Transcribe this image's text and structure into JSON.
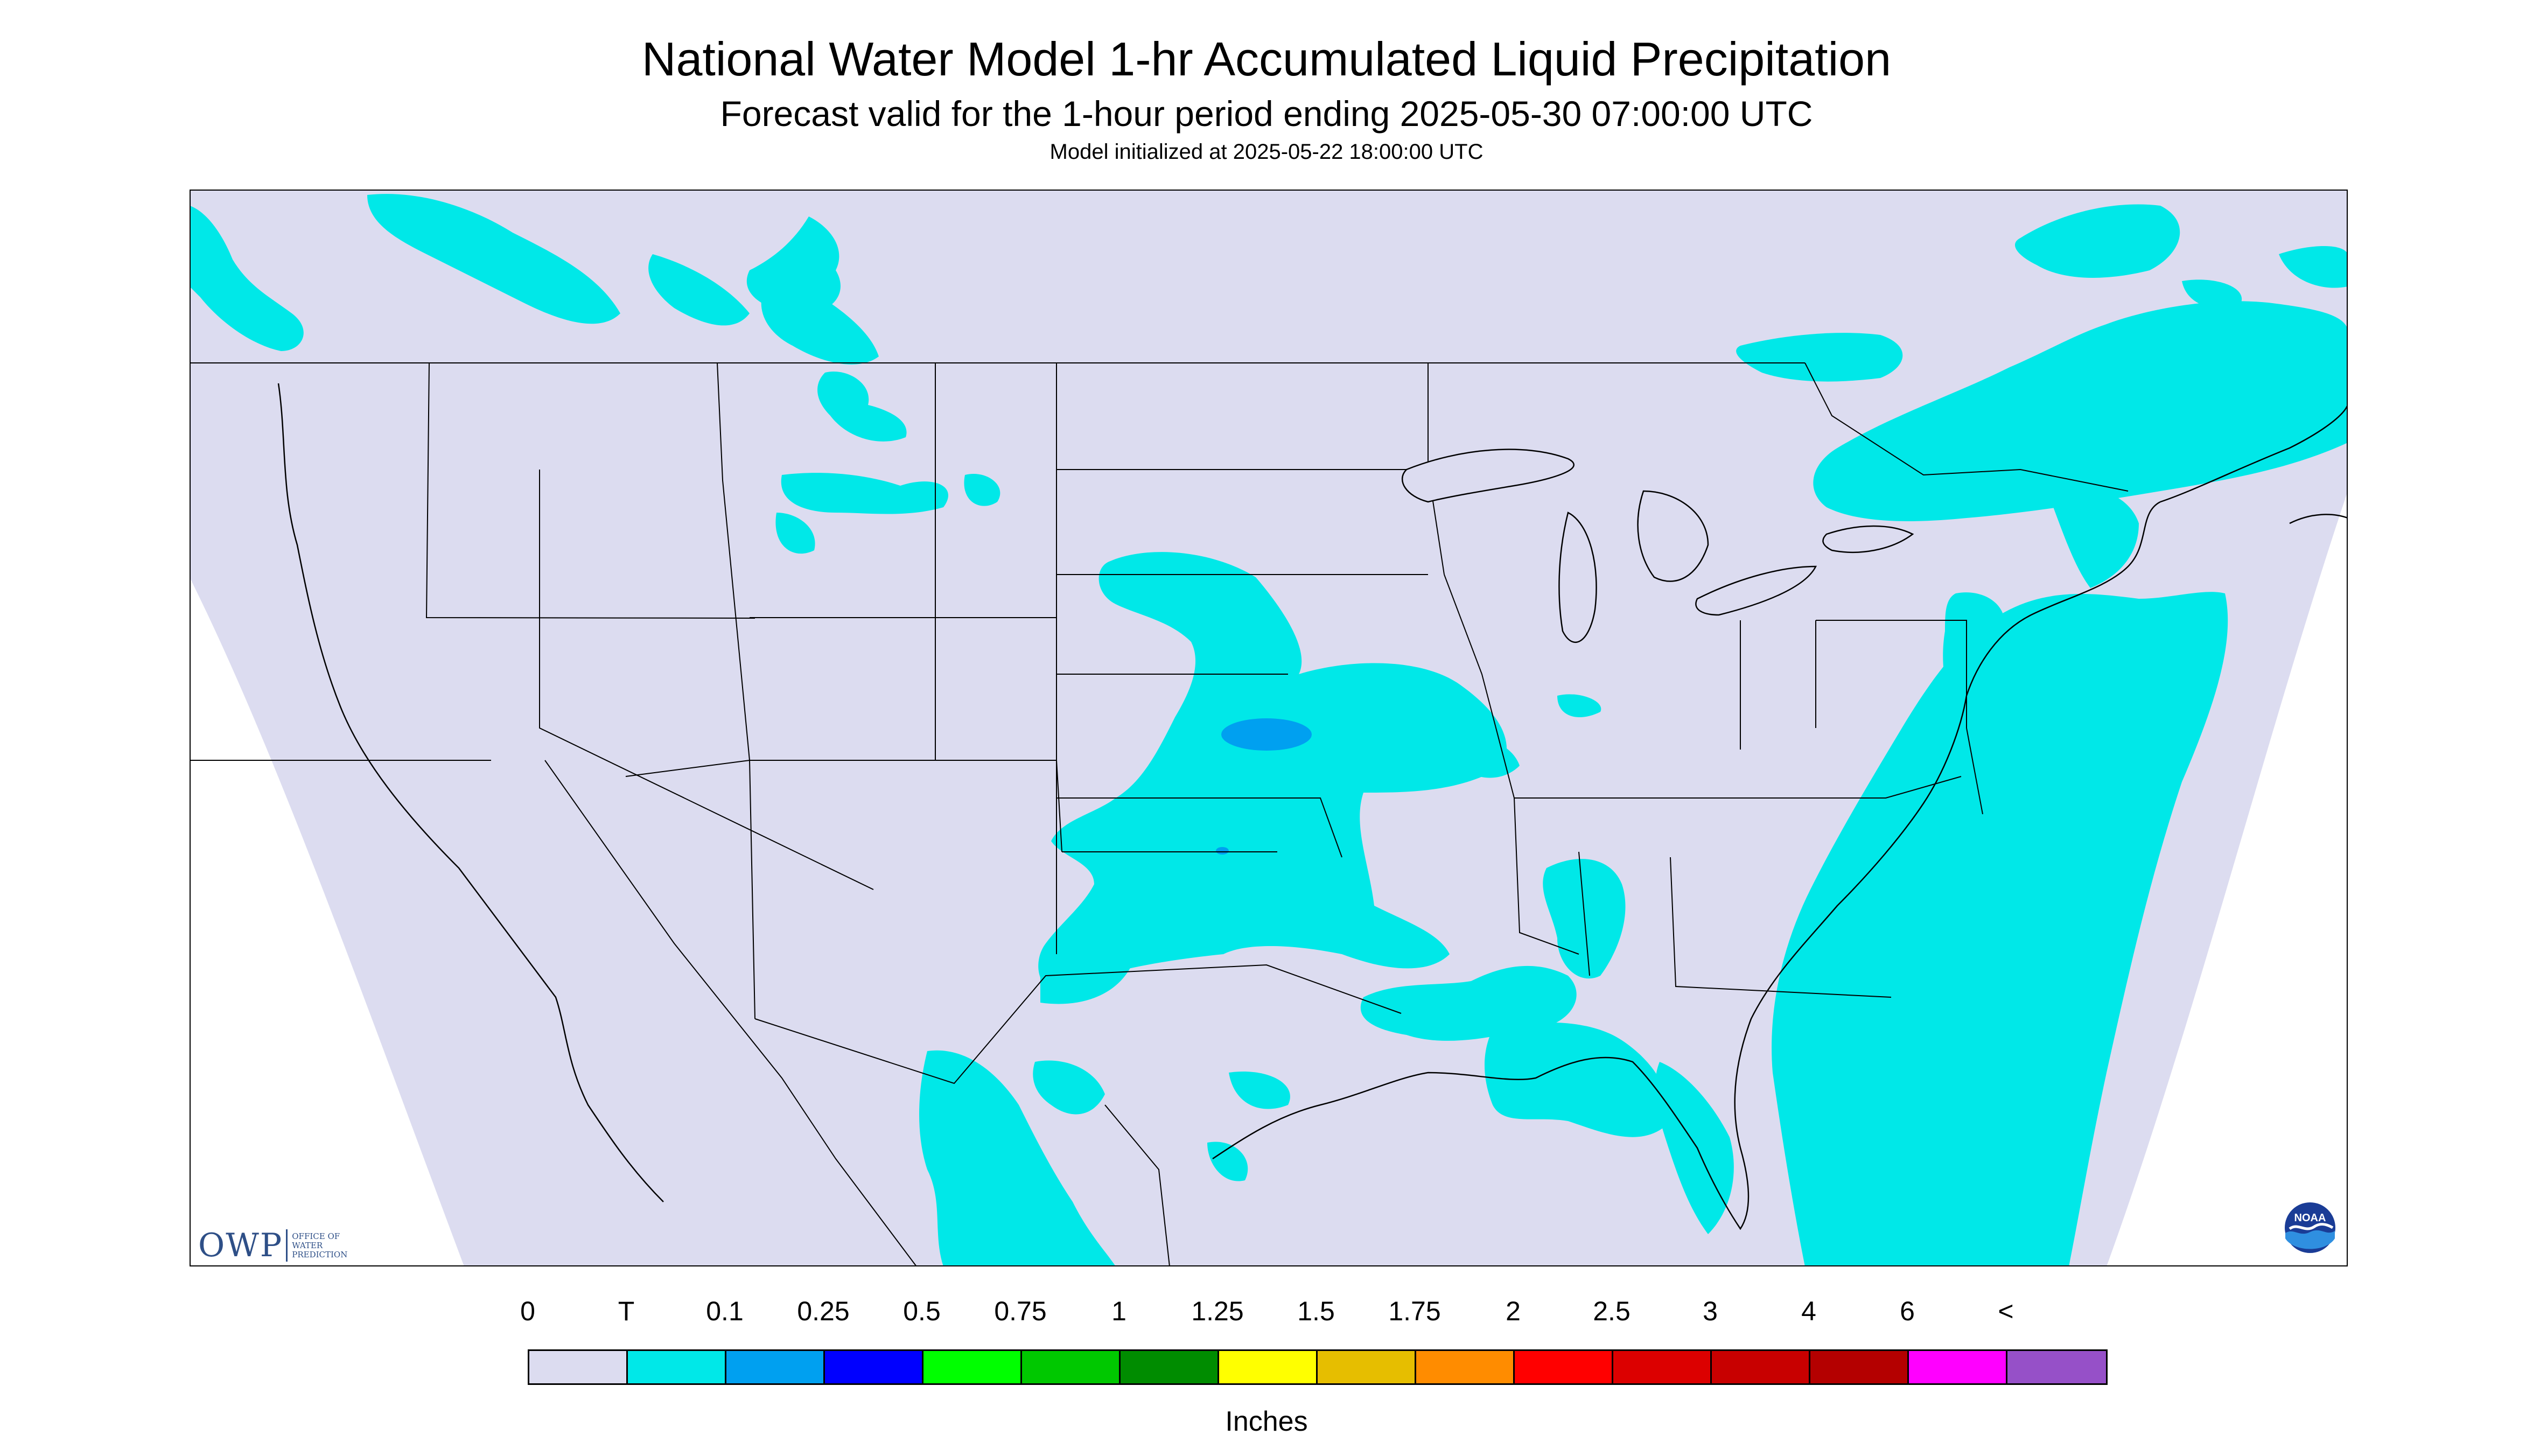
{
  "title": "National Water Model 1-hr Accumulated Liquid Precipitation",
  "subtitle": "Forecast valid for the 1-hour period ending 2025-05-30 07:00:00 UTC",
  "init_text": "Model initialized at 2025-05-22 18:00:00 UTC",
  "logo": {
    "owp_mark": "OWP",
    "owp_words": [
      "OFFICE OF",
      "WATER",
      "PREDICTION"
    ],
    "noaa_text": "NOAA",
    "owp_icon": "owp-logo",
    "noaa_icon": "noaa-logo"
  },
  "map": {
    "region": "Contiguous United States",
    "background_color": "#dcdcf0",
    "outside_color": "#ffffff",
    "boundary_color": "#000000",
    "precip_areas": [
      {
        "category": "T",
        "color": "#00e8e8",
        "location": "Pacific Northwest coast and northern Rockies"
      },
      {
        "category": "T",
        "color": "#00e8e8",
        "location": "Central Plains (Kansas, Oklahoma, Missouri)"
      },
      {
        "category": "T",
        "color": "#00e8e8",
        "location": "Gulf Coast and northern Gulf of Mexico"
      },
      {
        "category": "T",
        "color": "#00e8e8",
        "location": "Atlantic Ocean east coast"
      },
      {
        "category": "T",
        "color": "#00e8e8",
        "location": "Southern Canada and New England"
      },
      {
        "category": "0.1",
        "color": "#00a0f0",
        "location": "Northeast Kansas"
      }
    ]
  },
  "legend": {
    "labels": [
      "0",
      "T",
      "0.1",
      "0.25",
      "0.5",
      "0.75",
      "1",
      "1.25",
      "1.5",
      "1.75",
      "2",
      "2.5",
      "3",
      "4",
      "6",
      "<"
    ],
    "colors": [
      "#dcdcf0",
      "#00e8e8",
      "#00a0f0",
      "#0000ff",
      "#00ff00",
      "#00c800",
      "#008c00",
      "#ffff00",
      "#e6be00",
      "#ff8c00",
      "#ff0000",
      "#dc0000",
      "#c80000",
      "#b40000",
      "#ff00ff",
      "#9650c8"
    ],
    "units": "Inches"
  }
}
